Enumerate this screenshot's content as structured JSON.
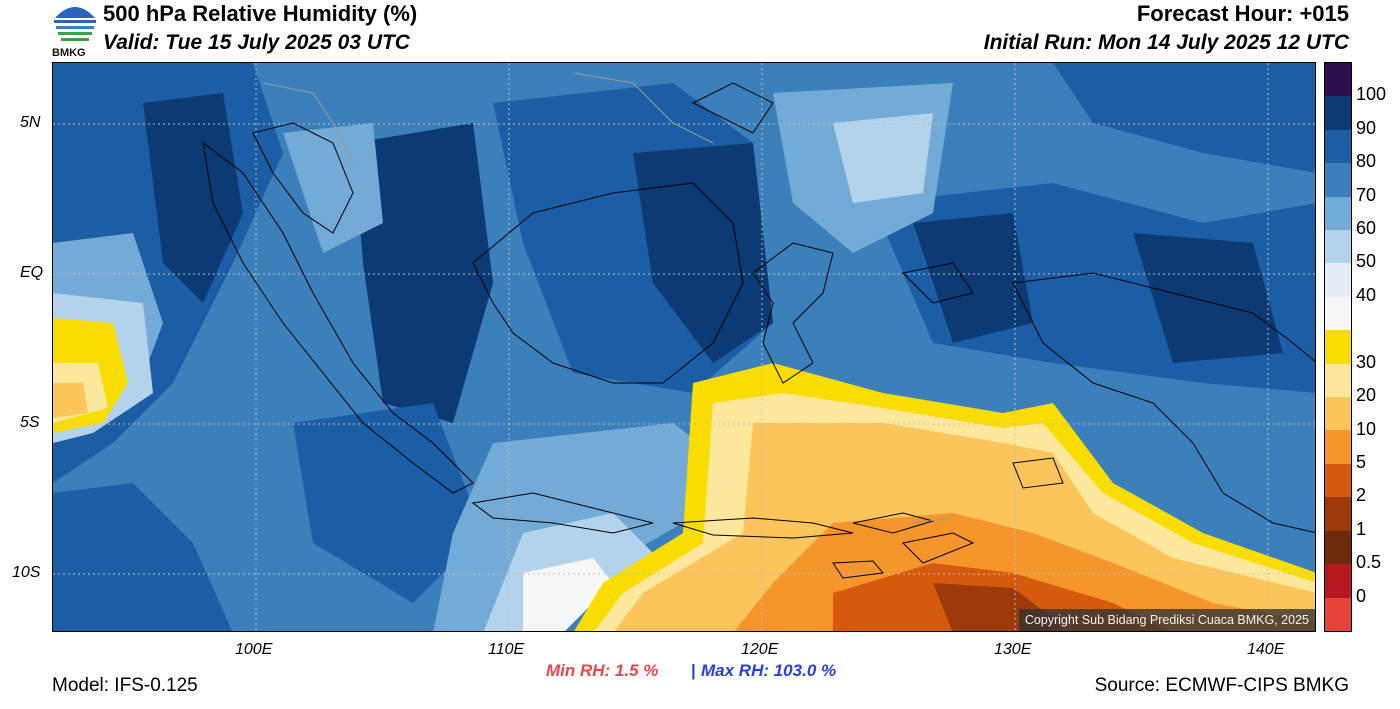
{
  "header": {
    "title": "500 hPa Relative Humidity (%)",
    "valid": "Valid: Tue 15 July 2025 03 UTC",
    "forecast_hour": "Forecast Hour: +015",
    "initial_run": "Initial Run: Mon 14 July 2025 12 UTC",
    "logo_text": "BMKG"
  },
  "map": {
    "lat_labels": [
      "5N",
      "EQ",
      "5S",
      "10S"
    ],
    "lon_labels": [
      "100E",
      "110E",
      "120E",
      "130E",
      "140E"
    ],
    "copyright": "Copyright Sub Bidang Prediksi Cuaca BMKG, 2025"
  },
  "colorbar": {
    "labels": [
      "100",
      "90",
      "80",
      "70",
      "60",
      "50",
      "40",
      "30",
      "20",
      "10",
      "5",
      "2",
      "1",
      "0.5",
      "0"
    ],
    "colors": [
      "#2a0f4e",
      "#0b3a75",
      "#1c5ea6",
      "#3b7fbb",
      "#73aad6",
      "#b3d3ec",
      "#e3eef7",
      "#f7f7f7",
      "#f9dd00",
      "#fce89d",
      "#fbc55b",
      "#f6952b",
      "#d65a0e",
      "#9c3a09",
      "#6e2a0c",
      "#b5191f",
      "#e5433c"
    ]
  },
  "stats": {
    "min_rh": "Min RH:   1.5 %",
    "separator": "|",
    "max_rh": "Max RH: 103.0 %"
  },
  "footer": {
    "model": "Model: IFS-0.125",
    "source": "Source: ECMWF-CIPS BMKG"
  }
}
